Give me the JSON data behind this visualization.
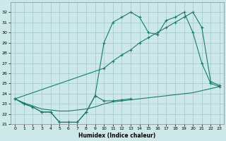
{
  "xlabel": "Humidex (Indice chaleur)",
  "line_zigzag_x": [
    0,
    1,
    2,
    3,
    4,
    5,
    6,
    7,
    8,
    9,
    10,
    11,
    12,
    13
  ],
  "line_zigzag_y": [
    23.5,
    23.0,
    22.7,
    22.2,
    22.2,
    21.2,
    21.2,
    21.2,
    22.2,
    23.8,
    23.3,
    23.3,
    23.4,
    23.5
  ],
  "line_flat_x": [
    0,
    1,
    2,
    3,
    4,
    5,
    6,
    7,
    8,
    9,
    10,
    11,
    12,
    13,
    14,
    15,
    16,
    17,
    18,
    19,
    20,
    21,
    22,
    23
  ],
  "line_flat_y": [
    23.5,
    23.1,
    22.8,
    22.5,
    22.4,
    22.3,
    22.3,
    22.4,
    22.5,
    22.7,
    23.0,
    23.2,
    23.3,
    23.4,
    23.5,
    23.6,
    23.7,
    23.8,
    23.9,
    24.0,
    24.1,
    24.3,
    24.5,
    24.7
  ],
  "line_top_x": [
    0,
    1,
    2,
    3,
    4,
    5,
    6,
    7,
    8,
    9,
    10,
    11,
    12,
    13,
    14,
    15,
    16,
    17,
    18,
    19,
    20,
    21,
    22,
    23
  ],
  "line_top_y": [
    23.5,
    23.0,
    22.7,
    22.2,
    22.2,
    21.2,
    21.2,
    21.2,
    22.2,
    23.8,
    29.0,
    31.0,
    31.5,
    32.0,
    31.5,
    30.0,
    29.8,
    31.2,
    31.5,
    32.0,
    30.0,
    27.0,
    25.0,
    24.7
  ],
  "line_mid_x": [
    0,
    10,
    11,
    12,
    13,
    14,
    15,
    16,
    17,
    18,
    19,
    20,
    21,
    22,
    23
  ],
  "line_mid_y": [
    23.5,
    26.5,
    27.2,
    27.8,
    28.3,
    29.0,
    29.5,
    30.0,
    30.5,
    31.0,
    31.5,
    32.0,
    30.5,
    25.2,
    24.8
  ],
  "ylim": [
    21,
    33
  ],
  "xlim": [
    -0.5,
    23.5
  ],
  "yticks": [
    21,
    22,
    23,
    24,
    25,
    26,
    27,
    28,
    29,
    30,
    31,
    32
  ],
  "xticks": [
    0,
    1,
    2,
    3,
    4,
    5,
    6,
    7,
    8,
    9,
    10,
    11,
    12,
    13,
    14,
    15,
    16,
    17,
    18,
    19,
    20,
    21,
    22,
    23
  ],
  "line_color": "#1a7a6e",
  "bg_color": "#cce8e8",
  "grid_color": "#a0c8c8"
}
